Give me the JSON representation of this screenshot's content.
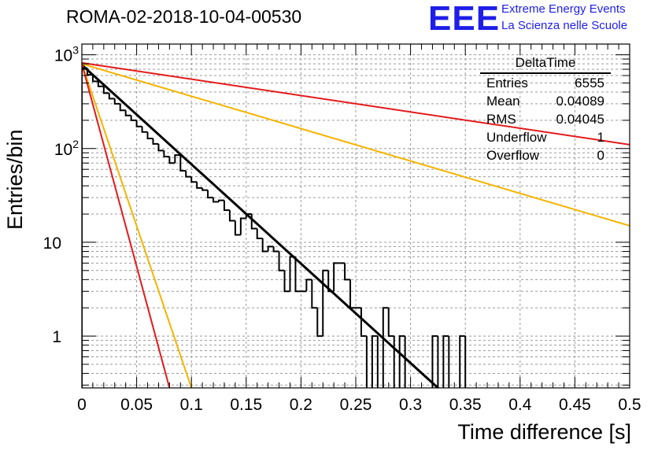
{
  "header": {
    "title": "ROMA-02-2018-10-04-00530",
    "logo_text": "EEE",
    "brand_line1": "Extreme Energy Events",
    "brand_line2": "La Scienza nelle Scuole"
  },
  "stats_box": {
    "name": "DeltaTime",
    "rows": [
      {
        "label": "Entries",
        "value": "6555"
      },
      {
        "label": "Mean",
        "value": "0.04089"
      },
      {
        "label": "RMS",
        "value": "0.04045"
      },
      {
        "label": "Underflow",
        "value": "1"
      },
      {
        "label": "Overflow",
        "value": "0"
      }
    ]
  },
  "chart_data": {
    "type": "line",
    "title": "ROMA-02-2018-10-04-00530",
    "xlabel": "Time difference [s]",
    "ylabel": "Entries/bin",
    "xlim": [
      0,
      0.5
    ],
    "ylim": [
      0.28,
      1300
    ],
    "yscale": "log",
    "grid": true,
    "x_ticks": [
      0,
      0.05,
      0.1,
      0.15,
      0.2,
      0.25,
      0.3,
      0.35,
      0.4,
      0.45,
      0.5
    ],
    "x_tick_labels": [
      "0",
      "0.05",
      "0.1",
      "0.15",
      "0.2",
      "0.25",
      "0.3",
      "0.35",
      "0.4",
      "0.45",
      "0.5"
    ],
    "y_ticks": [
      1,
      10,
      100,
      1000
    ],
    "y_tick_labels": [
      "1",
      "10",
      "10²",
      "10³"
    ],
    "histogram": {
      "name": "DeltaTime",
      "bin_width": 0.005,
      "x_start": 0,
      "counts": [
        720,
        610,
        520,
        460,
        390,
        340,
        300,
        255,
        225,
        200,
        172,
        150,
        128,
        112,
        95,
        82,
        70,
        85,
        58,
        50,
        44,
        38,
        36,
        30,
        27,
        28,
        22,
        17,
        12,
        18,
        20,
        14,
        11,
        8,
        9,
        8,
        5,
        3,
        7,
        3,
        3,
        4,
        2,
        1,
        5,
        3,
        6,
        6,
        4,
        2,
        2,
        1,
        0,
        1,
        0,
        2,
        1,
        0,
        1,
        0,
        0,
        0,
        0,
        0,
        1,
        0,
        1,
        0,
        0,
        1,
        0
      ]
    },
    "series": [
      {
        "name": "fit",
        "color": "#000000",
        "x": [
          0,
          0.325
        ],
        "values": [
          780,
          0.28
        ]
      },
      {
        "name": "red upper",
        "color": "#e41a1c",
        "x": [
          0,
          0.5
        ],
        "values": [
          820,
          110
        ]
      },
      {
        "name": "orange upper",
        "color": "#f5b400",
        "x": [
          0,
          0.5
        ],
        "values": [
          800,
          15
        ]
      },
      {
        "name": "orange lower",
        "color": "#f5b400",
        "x": [
          0,
          0.1
        ],
        "values": [
          800,
          0.28
        ]
      },
      {
        "name": "red lower",
        "color": "#e41a1c",
        "x": [
          0,
          0.08
        ],
        "values": [
          800,
          0.28
        ]
      }
    ]
  }
}
